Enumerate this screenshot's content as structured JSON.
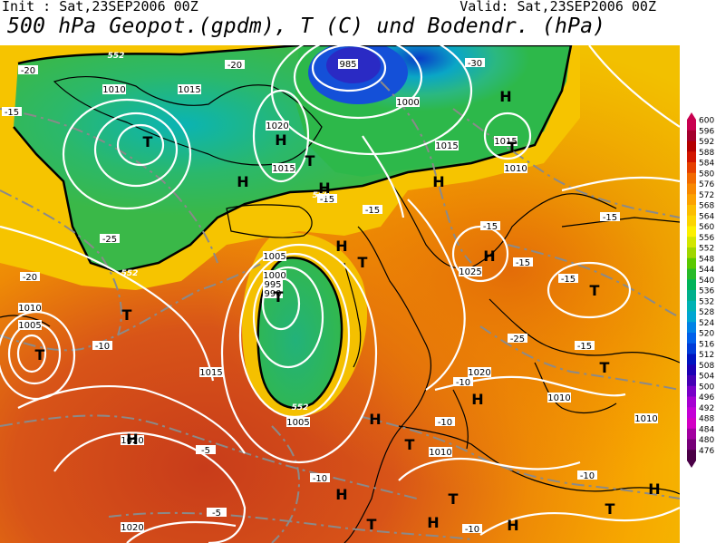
{
  "header": {
    "init": "Init : Sat,23SEP2006 00Z",
    "valid": "Valid: Sat,23SEP2006 00Z",
    "title": "500 hPa Geopot.(gpdm), T (C) und Bodendr. (hPa)"
  },
  "legend": {
    "levels": [
      "600",
      "596",
      "592",
      "588",
      "584",
      "580",
      "576",
      "572",
      "568",
      "564",
      "560",
      "556",
      "552",
      "548",
      "544",
      "540",
      "536",
      "532",
      "528",
      "524",
      "520",
      "516",
      "512",
      "508",
      "504",
      "500",
      "496",
      "492",
      "488",
      "484",
      "480",
      "476"
    ],
    "colors": [
      "#c8004f",
      "#a4002d",
      "#b40000",
      "#d21600",
      "#e64000",
      "#f26a00",
      "#f88800",
      "#fca200",
      "#fcbe00",
      "#fcd400",
      "#fcf000",
      "#d2e600",
      "#a0d600",
      "#5ac800",
      "#28ba28",
      "#00b45a",
      "#00b08c",
      "#00b2b4",
      "#00a6d2",
      "#0082e6",
      "#0060ea",
      "#003cd8",
      "#0014c0",
      "#1c00b4",
      "#4400b4",
      "#7800c8",
      "#a600d2",
      "#c400d6",
      "#d200c4",
      "#a200a0",
      "#760078",
      "#4a0046"
    ]
  },
  "isobar_labels": [
    "1010",
    "1015",
    "1020",
    "1005",
    "1000",
    "995",
    "990",
    "985",
    "1025"
  ],
  "temperature_labels": [
    "-5",
    "-10",
    "-15",
    "-20",
    "-25",
    "-30"
  ],
  "geopotential_labels": [
    "552",
    "560"
  ],
  "pressure_centers": [
    {
      "type": "H",
      "label": "H"
    },
    {
      "type": "T",
      "label": "T"
    }
  ],
  "colors": {
    "background_low": "#2db84a",
    "background_mid": "#f2a100",
    "background_high": "#c84020",
    "isobar": "#ffffff",
    "isotherm": "#8f8f8f",
    "coast": "#000000"
  }
}
